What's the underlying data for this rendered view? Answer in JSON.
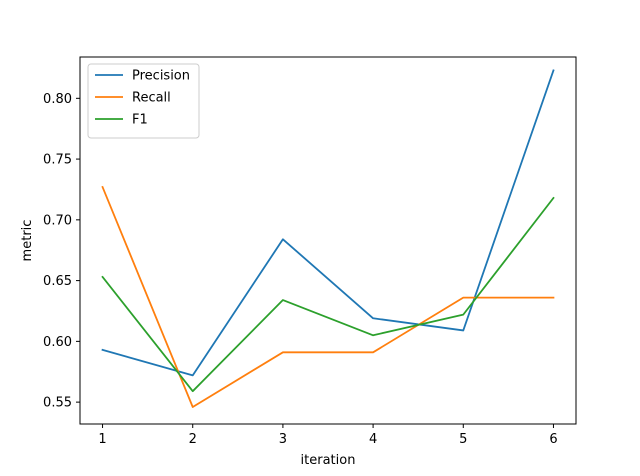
{
  "chart_data": {
    "type": "line",
    "title": "",
    "xlabel": "iteration",
    "ylabel": "metric",
    "x": [
      1,
      2,
      3,
      4,
      5,
      6
    ],
    "xlim": [
      0.75,
      6.25
    ],
    "ylim": [
      0.532,
      0.834
    ],
    "xticks": [
      1,
      2,
      3,
      4,
      5,
      6
    ],
    "yticks": [
      0.55,
      0.6,
      0.65,
      0.7,
      0.75,
      0.8
    ],
    "ytick_labels": [
      "0.55",
      "0.60",
      "0.65",
      "0.70",
      "0.75",
      "0.80"
    ],
    "grid": false,
    "legend_position": "top-left",
    "series": [
      {
        "name": "Precision",
        "color": "#1f77b4",
        "values": [
          0.593,
          0.572,
          0.684,
          0.619,
          0.609,
          0.823
        ]
      },
      {
        "name": "Recall",
        "color": "#ff7f0e",
        "values": [
          0.727,
          0.546,
          0.591,
          0.591,
          0.636,
          0.636
        ]
      },
      {
        "name": "F1",
        "color": "#2ca02c",
        "values": [
          0.653,
          0.559,
          0.634,
          0.605,
          0.622,
          0.718
        ]
      }
    ]
  }
}
